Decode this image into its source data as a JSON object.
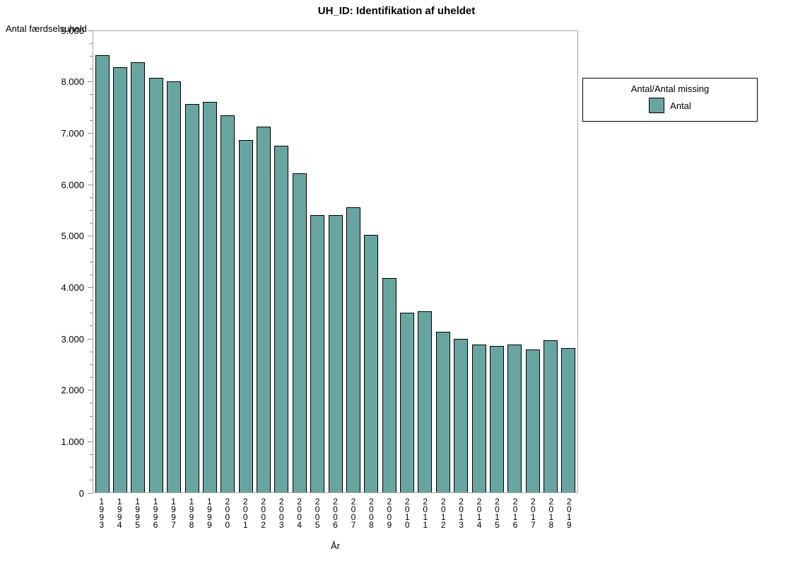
{
  "chart_data": {
    "type": "bar",
    "title": "UH_ID: Identifikation af uheldet",
    "xlabel": "År",
    "ylabel": "Antal færdselsuheld",
    "categories": [
      "1993",
      "1994",
      "1995",
      "1996",
      "1997",
      "1998",
      "1999",
      "2000",
      "2001",
      "2002",
      "2003",
      "2004",
      "2005",
      "2006",
      "2007",
      "2008",
      "2009",
      "2010",
      "2011",
      "2012",
      "2013",
      "2014",
      "2015",
      "2016",
      "2017",
      "2018",
      "2019"
    ],
    "values": [
      8510,
      8270,
      8370,
      8070,
      8000,
      7550,
      7600,
      7340,
      6850,
      7110,
      6740,
      6210,
      5400,
      5390,
      5550,
      5010,
      4170,
      3500,
      3530,
      3120,
      2980,
      2880,
      2850,
      2880,
      2780,
      2960,
      2810
    ],
    "ylim": [
      0,
      9000
    ],
    "ytick_step": 1000,
    "ytick_labels": [
      "0",
      "1.000",
      "2.000",
      "3.000",
      "4.000",
      "5.000",
      "6.000",
      "7.000",
      "8.000",
      "9.000"
    ],
    "minor_tick_step": 250,
    "grid": false,
    "legend_position": "right",
    "bar_color": "#68a5a1",
    "bar_border_color": "#000000",
    "frame_color": "#a6a6a6"
  },
  "legend": {
    "title": "Antal/Antal missing",
    "entries": [
      {
        "label": "Antal",
        "color": "#68a5a1"
      }
    ]
  }
}
